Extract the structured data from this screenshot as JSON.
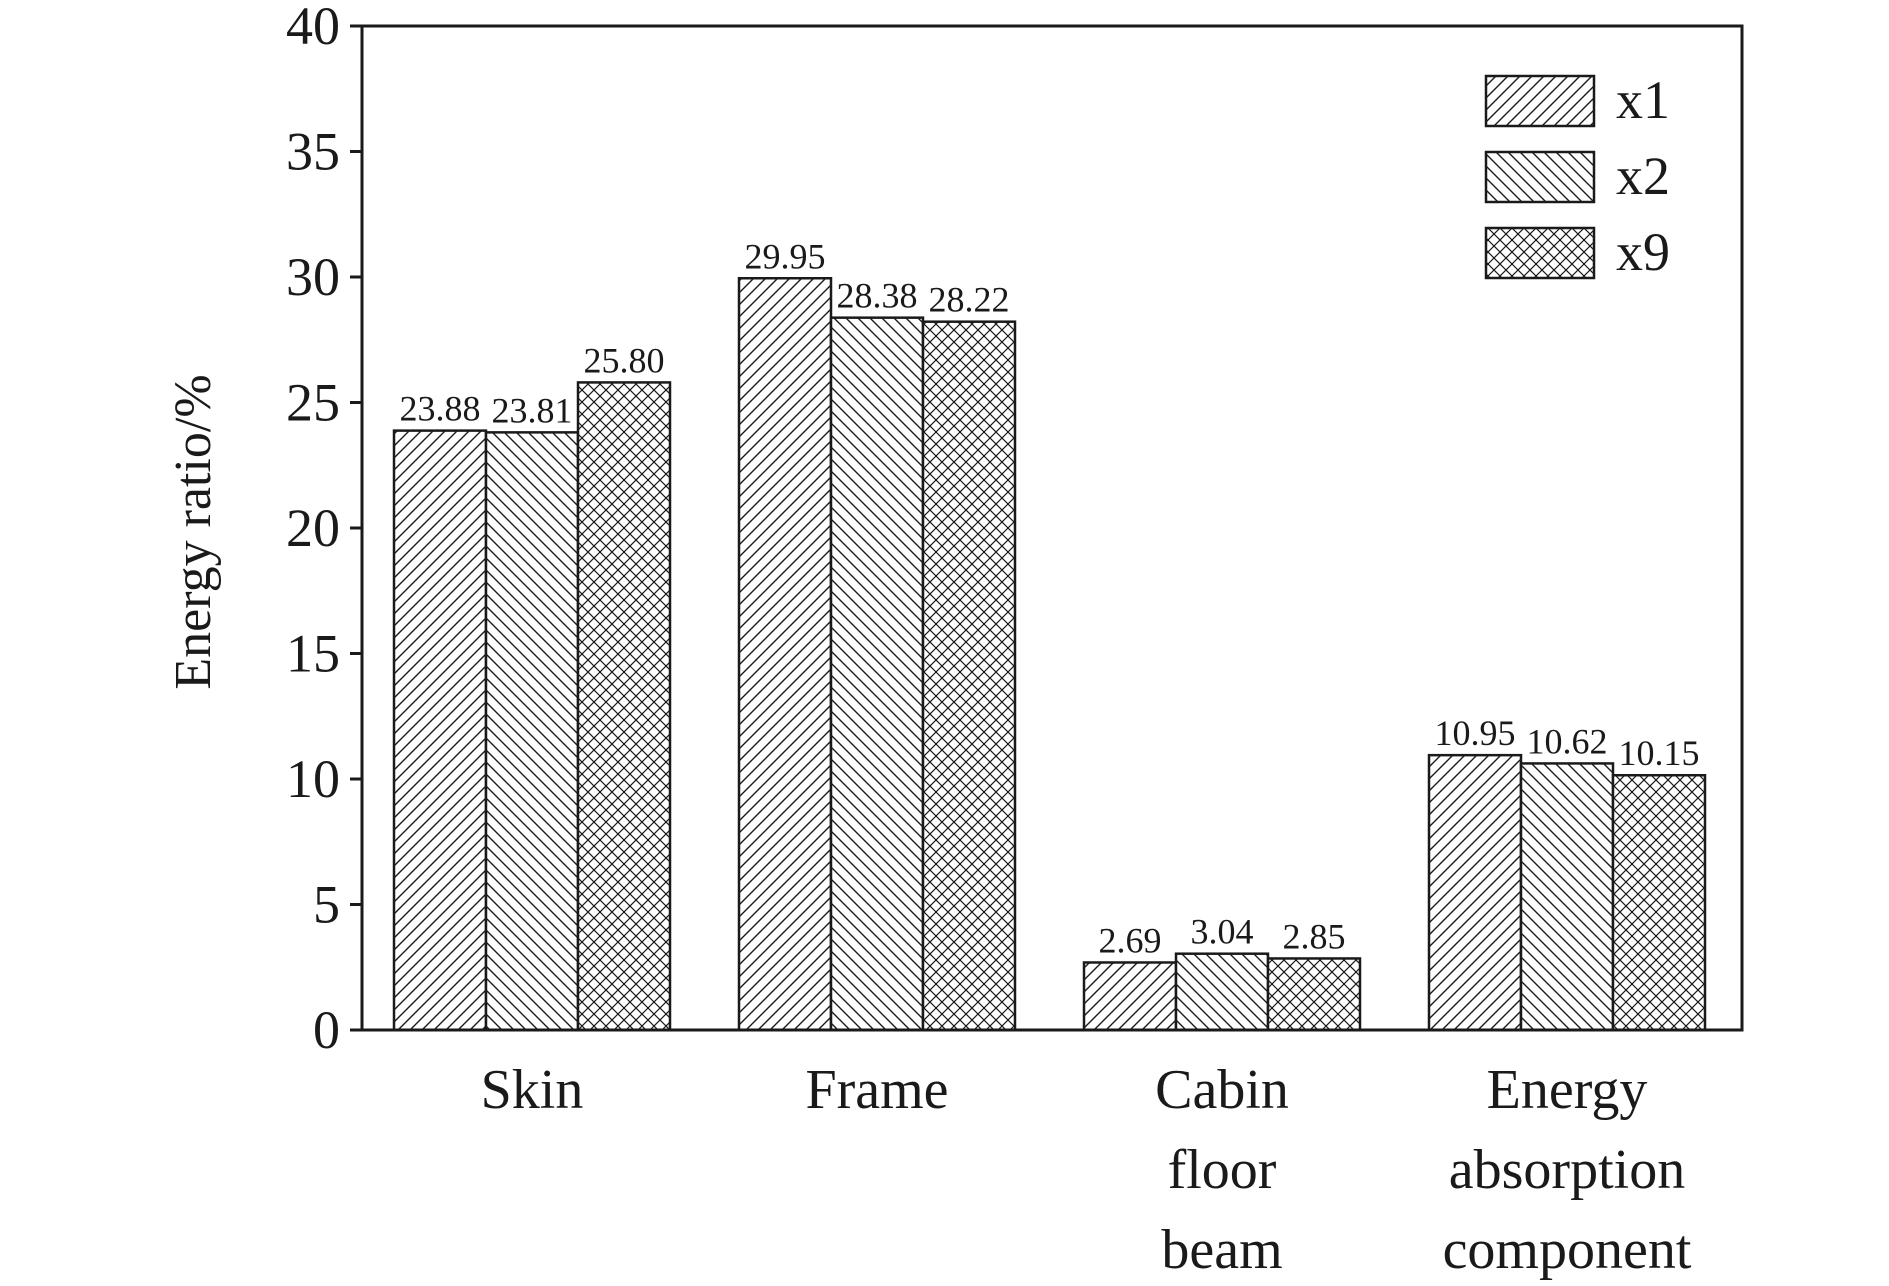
{
  "chart_data": {
    "type": "bar",
    "title": "",
    "xlabel": "",
    "ylabel": "Energy ratio/%",
    "ylim": [
      0,
      40
    ],
    "yticks": [
      0,
      5,
      10,
      15,
      20,
      25,
      30,
      35,
      40
    ],
    "grid": false,
    "legend_position": "top-right",
    "categories": [
      [
        "Skin"
      ],
      [
        "Frame"
      ],
      [
        "Cabin",
        "floor",
        "beam"
      ],
      [
        "Energy",
        "absorption",
        "component"
      ]
    ],
    "series": [
      {
        "name": "x1",
        "pattern": "diagonal-forward",
        "values": [
          23.88,
          29.95,
          2.69,
          10.95
        ],
        "labels": [
          "23.88",
          "29.95",
          "2.69",
          "10.95"
        ]
      },
      {
        "name": "x2",
        "pattern": "diagonal-backward",
        "values": [
          23.81,
          28.38,
          3.04,
          10.62
        ],
        "labels": [
          "23.81",
          "28.38",
          "3.04",
          "10.62"
        ]
      },
      {
        "name": "x9",
        "pattern": "crosshatch",
        "values": [
          25.8,
          28.22,
          2.85,
          10.15
        ],
        "labels": [
          "25.80",
          "28.22",
          "2.85",
          "10.15"
        ]
      }
    ],
    "colors": {
      "line": "#1a1a1a",
      "background": "#ffffff"
    }
  }
}
